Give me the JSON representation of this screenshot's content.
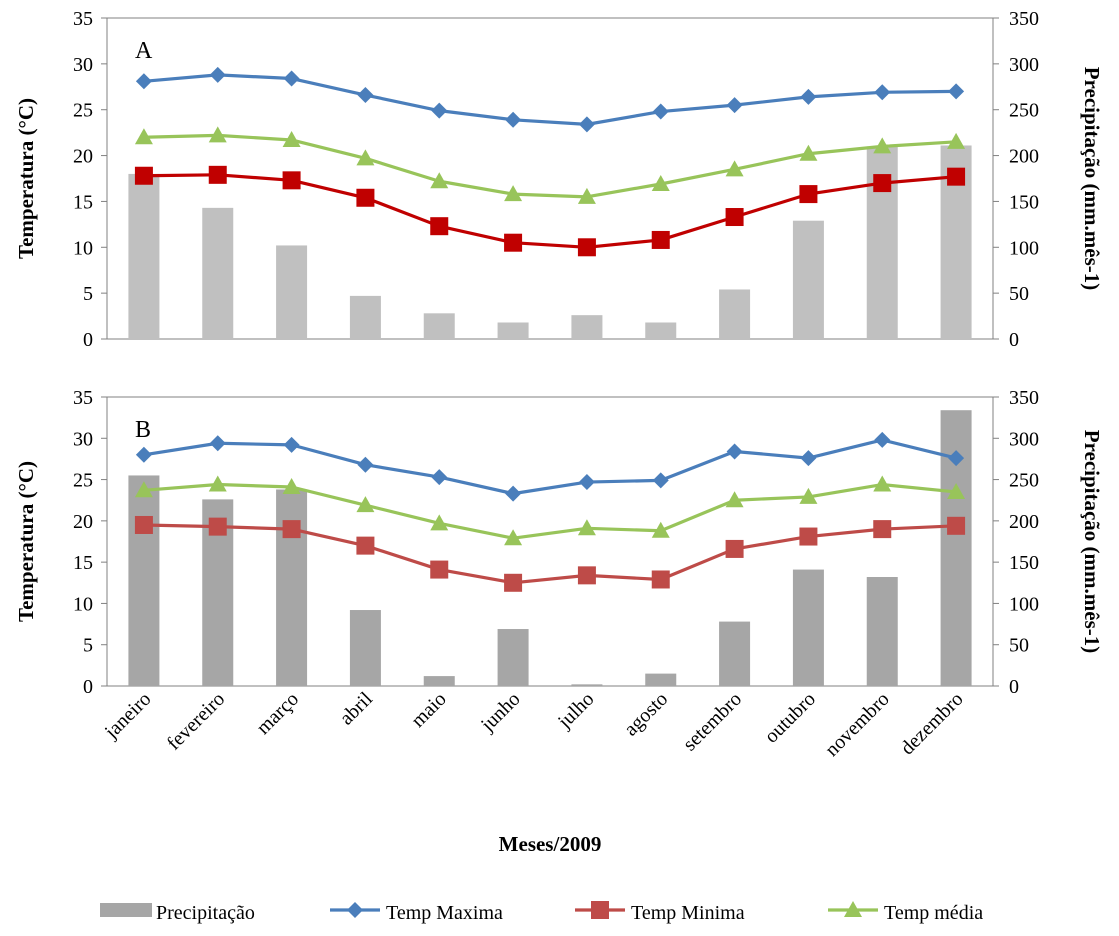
{
  "chart_data": [
    {
      "type": "bar+line",
      "panel_label": "A",
      "ylabel_left": "Temperatura (°C)",
      "ylabel_right": "Precipitação (mm.mês-1)",
      "ylim_left": [
        0,
        35
      ],
      "ylim_right": [
        0,
        350
      ],
      "yticks_left": [
        "0",
        "5",
        "10",
        "15",
        "20",
        "25",
        "30",
        "35"
      ],
      "yticks_right": [
        "0",
        "50",
        "100",
        "150",
        "200",
        "250",
        "300",
        "350"
      ],
      "precipitacao": [
        180,
        143,
        102,
        47,
        28,
        18,
        26,
        18,
        54,
        129,
        210,
        211
      ],
      "temp_maxima": [
        28.1,
        28.8,
        28.4,
        26.6,
        24.9,
        23.9,
        23.4,
        24.8,
        25.5,
        26.4,
        26.9,
        27.0
      ],
      "temp_minima": [
        17.8,
        17.9,
        17.3,
        15.4,
        12.3,
        10.5,
        10.0,
        10.8,
        13.3,
        15.8,
        17.0,
        17.7
      ],
      "temp_media": [
        22.0,
        22.2,
        21.7,
        19.7,
        17.2,
        15.8,
        15.5,
        16.9,
        18.5,
        20.2,
        21.0,
        21.5
      ],
      "bar_color": "#c0c0c0"
    },
    {
      "type": "bar+line",
      "panel_label": "B",
      "ylabel_left": "Temperatura (°C)",
      "ylabel_right": "Precipitação (mm.mês-1)",
      "ylim_left": [
        0,
        35
      ],
      "ylim_right": [
        0,
        350
      ],
      "yticks_left": [
        "0",
        "5",
        "10",
        "15",
        "20",
        "25",
        "30",
        "35"
      ],
      "yticks_right": [
        "0",
        "50",
        "100",
        "150",
        "200",
        "250",
        "300",
        "350"
      ],
      "precipitacao": [
        255,
        226,
        238,
        92,
        12,
        69,
        2,
        15,
        78,
        141,
        132,
        334
      ],
      "temp_maxima": [
        28.0,
        29.4,
        29.2,
        26.8,
        25.3,
        23.3,
        24.7,
        24.9,
        28.4,
        27.6,
        29.8,
        27.6
      ],
      "temp_minima": [
        19.5,
        19.3,
        19.0,
        17.0,
        14.1,
        12.5,
        13.4,
        12.9,
        16.6,
        18.1,
        19.0,
        19.4
      ],
      "temp_media": [
        23.7,
        24.4,
        24.1,
        21.9,
        19.7,
        17.9,
        19.1,
        18.8,
        22.5,
        22.9,
        24.4,
        23.5
      ],
      "bar_color": "#a6a6a6"
    }
  ],
  "categories": [
    "janeiro",
    "fevereiro",
    "março",
    "abril",
    "maio",
    "junho",
    "julho",
    "agosto",
    "setembro",
    "outubro",
    "novembro",
    "dezembro"
  ],
  "xlabel": "Meses/2009",
  "legend": [
    {
      "key": "precipitacao",
      "label": "Precipitação",
      "kind": "bar",
      "color": "#a6a6a6"
    },
    {
      "key": "temp_maxima",
      "label": "Temp Maxima",
      "kind": "line",
      "marker": "diamond",
      "color": "#4a7ebb"
    },
    {
      "key": "temp_minima",
      "label": "Temp Minima",
      "kind": "line",
      "marker": "square",
      "color": "#be4b48"
    },
    {
      "key": "temp_media",
      "label": "Temp média",
      "kind": "line",
      "marker": "triangle",
      "color": "#98c45a"
    }
  ],
  "series_style": {
    "temp_maxima": {
      "color": "#4a7ebb",
      "marker": "diamond"
    },
    "temp_minima_A": {
      "color": "#c00000",
      "marker": "square"
    },
    "temp_minima_B": {
      "color": "#be4b48",
      "marker": "square"
    },
    "temp_media": {
      "color": "#98c45a",
      "marker": "triangle"
    }
  }
}
